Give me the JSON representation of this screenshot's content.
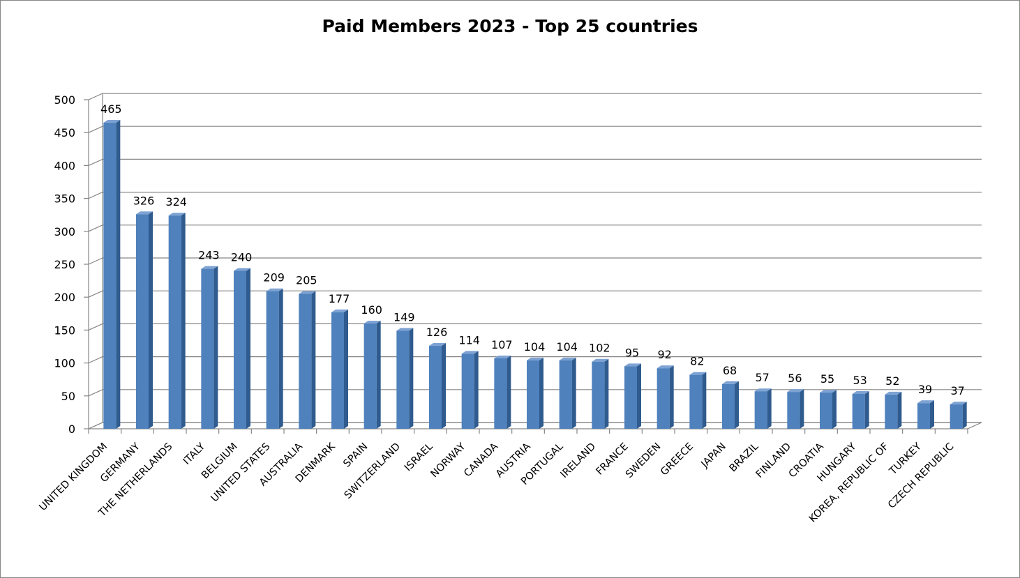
{
  "chart_data": {
    "type": "bar",
    "title": "Paid Members 2023 - Top 25 countries",
    "xlabel": "",
    "ylabel": "",
    "ylim": [
      0,
      500
    ],
    "yticks": [
      "0",
      "50",
      "100",
      "150",
      "200",
      "250",
      "300",
      "350",
      "400",
      "450",
      "500"
    ],
    "grid": true,
    "legend": "none",
    "categories": [
      "UNITED KINGDOM",
      "GERMANY",
      "THE NETHERLANDS",
      "ITALY",
      "BELGIUM",
      "UNITED STATES",
      "AUSTRALIA",
      "DENMARK",
      "SPAIN",
      "SWITZERLAND",
      "ISRAEL",
      "NORWAY",
      "CANADA",
      "AUSTRIA",
      "PORTUGAL",
      "IRELAND",
      "FRANCE",
      "SWEDEN",
      "GREECE",
      "JAPAN",
      "BRAZIL",
      "FINLAND",
      "CROATIA",
      "HUNGARY",
      "KOREA, REPUBLIC OF",
      "TURKEY",
      "CZECH REPUBLIC"
    ],
    "values": [
      465,
      326,
      324,
      243,
      240,
      209,
      205,
      177,
      160,
      149,
      126,
      114,
      107,
      104,
      104,
      102,
      95,
      92,
      82,
      68,
      57,
      56,
      55,
      53,
      52,
      39,
      37
    ],
    "colors": {
      "bar_front": "#4F81BD",
      "bar_side": "#2F5B8E",
      "bar_top": "#7EA3D3",
      "grid": "#868686",
      "axis": "#868686",
      "text": "#000000"
    }
  }
}
